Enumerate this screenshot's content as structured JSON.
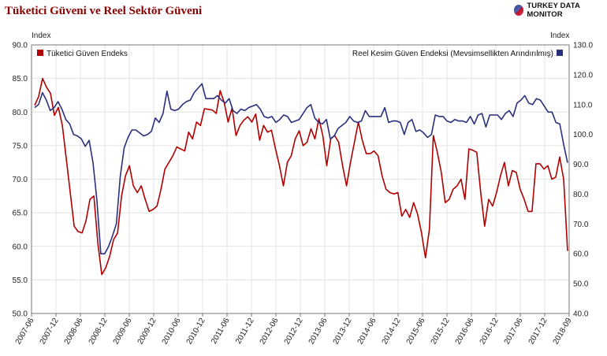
{
  "header": {
    "title": "Tüketici Güveni ve Reel Sektör Güveni",
    "brand": "TURKEY DATA MONITOR"
  },
  "colors": {
    "title": "#8b0000",
    "series_red": "#b00000",
    "series_blue": "#2b2f7e",
    "grid": "#e3e3e3",
    "axis": "#777777"
  },
  "chart_data": {
    "type": "line",
    "left_unit": "Index",
    "right_unit": "Index",
    "left_axis": {
      "ylim": [
        50,
        90
      ],
      "ticks": [
        "50.0",
        "55.0",
        "60.0",
        "65.0",
        "70.0",
        "75.0",
        "80.0",
        "85.0",
        "90.0"
      ]
    },
    "right_axis": {
      "ylim": [
        40,
        130
      ],
      "ticks": [
        "40.0",
        "50.0",
        "60.0",
        "70.0",
        "80.0",
        "90.0",
        "100.0",
        "110.0",
        "120.0",
        "130.0"
      ]
    },
    "x_tick_labels": [
      "2007-06",
      "2007-12",
      "2008-06",
      "2008-12",
      "2009-06",
      "2009-12",
      "2010-06",
      "2010-12",
      "2011-06",
      "2011-12",
      "2012-06",
      "2012-12",
      "2013-06",
      "2013-12",
      "2014-06",
      "2014-12",
      "2015-06",
      "2015-12",
      "2016-06",
      "2016-12",
      "2017-06",
      "2017-12",
      "2018-09"
    ],
    "grid": true,
    "series": [
      {
        "name": "Tüketici Güven Endeks",
        "axis": "left",
        "legend_position": "top-left",
        "values": [
          81.0,
          82.3,
          85.0,
          83.7,
          82.8,
          79.5,
          80.7,
          78.0,
          73.0,
          68.0,
          63.0,
          62.2,
          62.0,
          63.8,
          67.0,
          67.5,
          60.5,
          55.8,
          56.8,
          58.5,
          61.0,
          62.0,
          67.5,
          70.5,
          72.0,
          69.0,
          68.0,
          69.0,
          67.0,
          65.2,
          65.5,
          66.0,
          68.5,
          71.5,
          72.5,
          73.5,
          74.8,
          74.5,
          74.2,
          77.0,
          76.0,
          78.5,
          78.0,
          80.5,
          80.4,
          80.3,
          79.8,
          83.2,
          81.4,
          78.5,
          80.6,
          76.5,
          78.0,
          78.8,
          79.3,
          78.5,
          79.7,
          75.8,
          78.0,
          77.0,
          77.3,
          74.5,
          72.0,
          69.0,
          72.5,
          73.5,
          76.0,
          77.2,
          75.0,
          75.5,
          77.5,
          76.0,
          79.0,
          76.5,
          72.0,
          76.0,
          76.5,
          75.5,
          72.0,
          69.0,
          72.5,
          75.5,
          78.5,
          75.8,
          73.8,
          73.8,
          74.2,
          73.5,
          70.5,
          68.5,
          68.0,
          67.8,
          68.0,
          64.5,
          65.5,
          64.3,
          66.5,
          64.8,
          62.0,
          58.3,
          62.5,
          76.5,
          74.0,
          71.0,
          66.5,
          67.0,
          68.5,
          69.0,
          70.0,
          67.0,
          74.5,
          74.3,
          74.0,
          68.0,
          63.0,
          67.0,
          66.0,
          68.0,
          70.5,
          72.5,
          69.0,
          71.3,
          71.0,
          68.5,
          67.0,
          65.2,
          65.2,
          72.3,
          72.3,
          71.5,
          72.0,
          70.0,
          70.3,
          73.3,
          70.0,
          59.3
        ]
      },
      {
        "name": "Reel Kesim Güven Endeksi (Mevsimsellikten Arındırılmış)",
        "axis": "right",
        "legend_position": "top-right",
        "values": [
          109.0,
          110.0,
          114.0,
          111.5,
          108.0,
          109.0,
          111.0,
          108.5,
          105.0,
          103.5,
          100.0,
          99.5,
          98.5,
          96.0,
          98.0,
          90.5,
          78.0,
          60.0,
          60.0,
          62.5,
          66.0,
          70.0,
          86.0,
          95.5,
          99.0,
          101.5,
          101.5,
          100.5,
          99.5,
          100.0,
          101.0,
          105.5,
          104.0,
          107.0,
          114.5,
          108.5,
          108.0,
          108.5,
          110.0,
          111.0,
          111.5,
          114.0,
          115.5,
          117.0,
          112.0,
          112.0,
          112.0,
          113.0,
          111.5,
          110.5,
          112.0,
          108.0,
          107.0,
          108.5,
          108.0,
          109.0,
          109.5,
          110.0,
          108.5,
          106.0,
          105.5,
          106.0,
          104.0,
          105.0,
          106.5,
          106.0,
          104.0,
          104.5,
          105.0,
          107.0,
          109.0,
          110.0,
          105.5,
          104.0,
          103.5,
          105.0,
          98.5,
          99.5,
          102.0,
          103.0,
          104.0,
          106.0,
          104.5,
          104.0,
          104.5,
          108.0,
          106.0,
          106.0,
          106.0,
          106.0,
          109.0,
          104.0,
          104.5,
          104.5,
          104.0,
          100.0,
          104.0,
          105.0,
          101.0,
          101.5,
          100.5,
          99.0,
          100.0,
          106.5,
          106.0,
          106.0,
          104.5,
          104.0,
          105.0,
          104.5,
          104.5,
          104.0,
          106.0,
          103.5,
          106.5,
          107.0,
          102.5,
          106.5,
          106.5,
          106.5,
          105.0,
          107.0,
          108.0,
          106.0,
          110.5,
          111.5,
          113.0,
          110.5,
          110.0,
          112.0,
          111.5,
          109.5,
          107.5,
          107.5,
          104.0,
          103.5,
          96.5,
          90.5
        ]
      }
    ]
  }
}
